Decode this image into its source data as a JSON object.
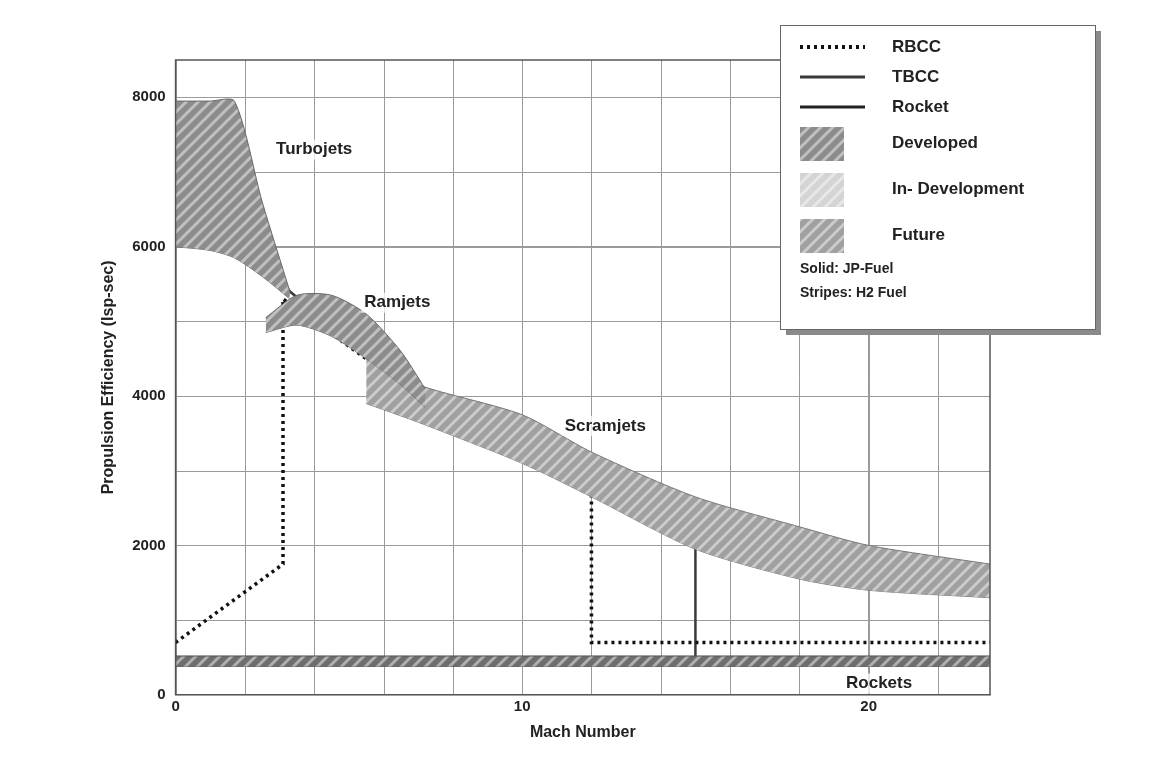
{
  "chart_data": {
    "type": "line",
    "x_label": "Mach Number",
    "y_label": "Propulsion Efficiency (Isp-sec)",
    "xlim": [
      0,
      23.5
    ],
    "xticks": [
      0,
      10,
      20
    ],
    "ylim": [
      0,
      8500
    ],
    "yticks": [
      0,
      2000,
      4000,
      6000,
      8000
    ],
    "grid": true,
    "legend": "upper right",
    "bands": [
      {
        "name": "Turbojets",
        "color": "#8c8c8c",
        "x": [
          0,
          1,
          1.7,
          2.5,
          3.3
        ],
        "values": [
          7950,
          7950,
          7950,
          6600,
          5400
        ],
        "lower": [
          6000,
          5950,
          5850,
          5600,
          5300
        ],
        "label_x": 4.0,
        "label_y": 7300
      },
      {
        "name": "Ramjets",
        "color": "#8c8c8c",
        "x": [
          2.6,
          3.5,
          4.5,
          5.5,
          6.5,
          7.2
        ],
        "values": [
          5050,
          5350,
          5350,
          5100,
          4600,
          4100
        ],
        "lower": [
          4850,
          4950,
          4800,
          4500,
          4150,
          3850
        ],
        "label_x": 6.4,
        "label_y": 5250
      },
      {
        "name": "Scramjets",
        "color": "#a0a0a0",
        "x": [
          5.5,
          7,
          10,
          12,
          15,
          18,
          20,
          23.5
        ],
        "values": [
          4500,
          4150,
          3750,
          3250,
          2650,
          2250,
          2000,
          1750
        ],
        "lower": [
          3900,
          3650,
          3100,
          2650,
          1950,
          1550,
          1400,
          1300
        ],
        "label_x": 12.4,
        "label_y": 3600
      },
      {
        "name": "Rockets",
        "color": "#6e6e6e",
        "x": [
          0,
          23.5
        ],
        "values": [
          520,
          520
        ],
        "lower": [
          380,
          380
        ],
        "label_x": 20.3,
        "label_y": 150
      }
    ],
    "series": [
      {
        "name": "RBCC",
        "color": "#111111",
        "line_style": "dotted",
        "x": [
          0,
          3.1,
          3.1,
          7,
          10,
          12,
          12,
          23.5
        ],
        "values": [
          700,
          1750,
          5300,
          4000,
          3400,
          3000,
          700,
          700
        ]
      },
      {
        "name": "TBCC",
        "color": "#3a3a3a",
        "line_style": "solid",
        "x": [
          0,
          3.3,
          7,
          10,
          12,
          15,
          15
        ],
        "values": [
          7550,
          5400,
          4000,
          3450,
          3000,
          2200,
          450
        ]
      },
      {
        "name": "Rocket",
        "color": "#222222",
        "line_style": "solid",
        "x": [
          0,
          23.5
        ],
        "values": [
          450,
          450
        ]
      }
    ],
    "key": {
      "entries": [
        {
          "name": "Developed",
          "color": "#8c8c8c"
        },
        {
          "name": "In- Development",
          "color": "#d4d4d4"
        },
        {
          "name": "Future",
          "color": "#a0a0a0"
        }
      ],
      "notes": [
        "Solid: JP-Fuel",
        "Stripes: H2 Fuel"
      ]
    }
  }
}
